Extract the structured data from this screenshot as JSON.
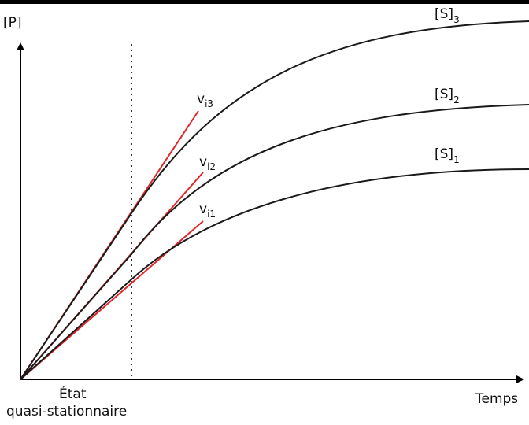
{
  "figure": {
    "y_axis_label": "[P]",
    "x_axis_label": "Temps",
    "annotation_line1": "État",
    "annotation_line2": "quasi-stationnaire",
    "colors": {
      "curves": "#1a1a1a",
      "tangents": "#e0262b",
      "axes": "#000000",
      "top_border": "#000000",
      "dotted_line": "#333333"
    }
  },
  "chart_data": {
    "type": "line",
    "xlabel": "Temps",
    "ylabel": "[P]",
    "series": [
      {
        "name_main": "[S]",
        "name_sub": "1"
      },
      {
        "name_main": "[S]",
        "name_sub": "2"
      },
      {
        "name_main": "[S]",
        "name_sub": "3"
      }
    ],
    "tangents": [
      {
        "name_main": "v",
        "name_sub": "i1"
      },
      {
        "name_main": "v",
        "name_sub": "i2"
      },
      {
        "name_main": "v",
        "name_sub": "i3"
      }
    ]
  }
}
